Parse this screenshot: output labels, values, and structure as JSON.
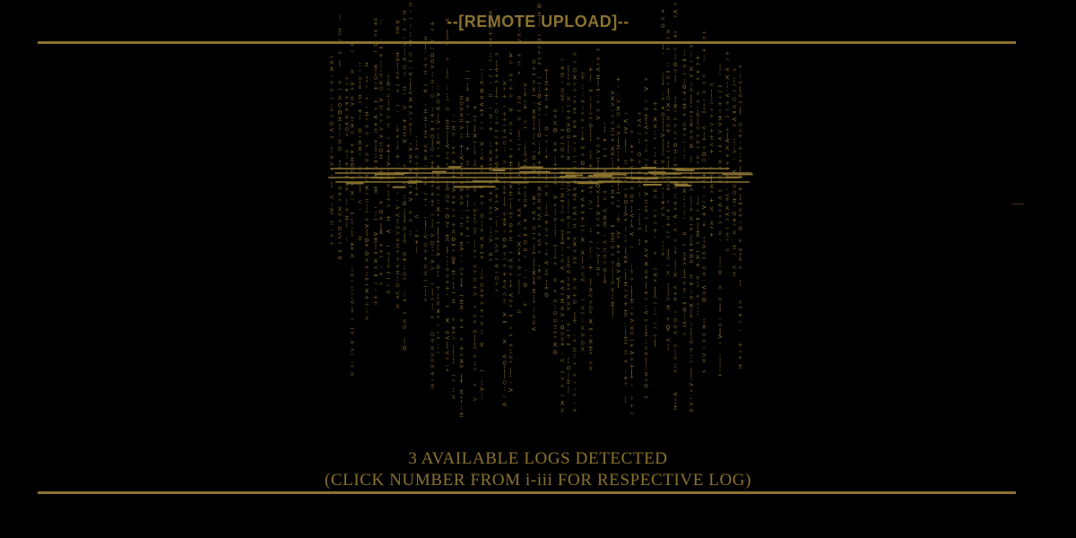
{
  "header": {
    "title": "--[REMOTE UPLOAD]--"
  },
  "status": {
    "line1": "3 AVAILABLE LOGS DETECTED",
    "line2": "(CLICK NUMBER FROM i-iii FOR RESPECTIVE LOG)"
  },
  "colors": {
    "background": "#000000",
    "accent": "#8a7230"
  },
  "icons": {
    "glyph_art": "glitch-glyph-rain-icon"
  }
}
